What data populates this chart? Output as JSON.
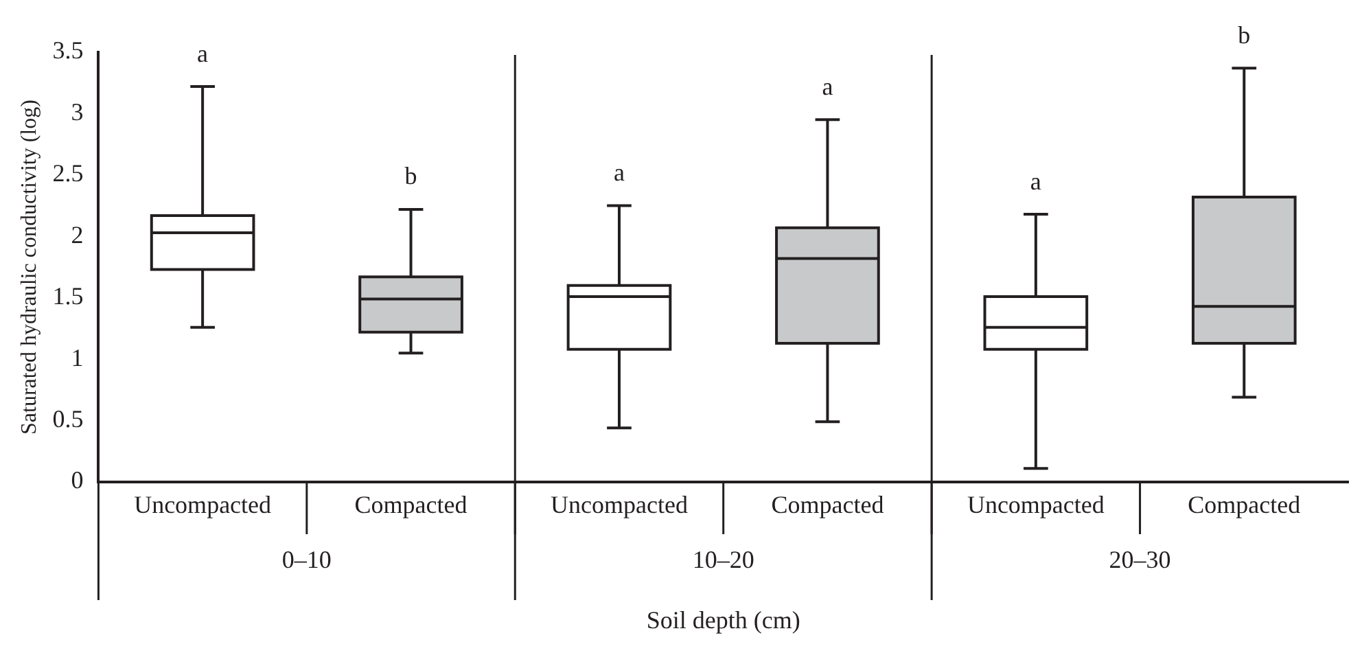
{
  "chart_data": {
    "type": "box",
    "ylabel": "Saturated hydraulic conductivity (log)",
    "xlabel": "Soil depth (cm)",
    "categories": [
      "Uncompacted",
      "Compacted",
      "Uncompacted",
      "Compacted",
      "Uncompacted",
      "Compacted"
    ],
    "series": [
      {
        "colors": [
          "#ffffff",
          "#c8c9ca",
          "#ffffff",
          "#c8c9ca",
          "#ffffff",
          "#c8c9ca"
        ],
        "boxes": [
          {
            "low": 1.26,
            "q1": 1.73,
            "median": 2.03,
            "q3": 2.17,
            "high": 3.22
          },
          {
            "low": 1.05,
            "q1": 1.22,
            "median": 1.49,
            "q3": 1.67,
            "high": 2.22
          },
          {
            "low": 0.44,
            "q1": 1.08,
            "median": 1.51,
            "q3": 1.6,
            "high": 2.25
          },
          {
            "low": 0.49,
            "q1": 1.13,
            "median": 1.82,
            "q3": 2.07,
            "high": 2.95
          },
          {
            "low": 0.11,
            "q1": 1.08,
            "median": 1.26,
            "q3": 1.51,
            "high": 2.18
          },
          {
            "low": 0.69,
            "q1": 1.13,
            "median": 1.43,
            "q3": 2.32,
            "high": 3.37
          }
        ]
      }
    ],
    "annotations": [
      {
        "text": "a",
        "y": 3.22
      },
      {
        "text": "b",
        "y": 2.22
      },
      {
        "text": "a",
        "y": 2.25
      },
      {
        "text": "a",
        "y": 2.95
      },
      {
        "text": "a",
        "y": 2.18
      },
      {
        "text": "b",
        "y": 3.37
      },
      "0–10",
      "10–20",
      "20–30"
    ],
    "ylim": [
      0,
      3.5
    ],
    "yticks": [
      0,
      0.5,
      1,
      1.5,
      2,
      2.5,
      3,
      3.5
    ]
  }
}
